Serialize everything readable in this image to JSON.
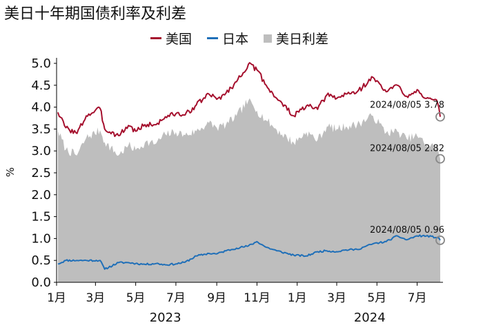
{
  "chart_data": {
    "type": "area",
    "title": "美日十年期国债利率及利差",
    "ylabel": "%",
    "ylim": [
      0.0,
      5.0
    ],
    "yticks": [
      "0.0",
      "0.5",
      "1.0",
      "1.5",
      "2.0",
      "2.5",
      "3.0",
      "3.5",
      "4.0",
      "4.5",
      "5.0"
    ],
    "xaxis": {
      "start": "2023-01-01",
      "end": "2024-08-05",
      "month_labels": [
        {
          "date": "2023-01-01",
          "label": "1月"
        },
        {
          "date": "2023-03-01",
          "label": "3月"
        },
        {
          "date": "2023-05-01",
          "label": "5月"
        },
        {
          "date": "2023-07-01",
          "label": "7月"
        },
        {
          "date": "2023-09-01",
          "label": "9月"
        },
        {
          "date": "2023-11-01",
          "label": "11月"
        },
        {
          "date": "2024-01-01",
          "label": "1月"
        },
        {
          "date": "2024-03-01",
          "label": "3月"
        },
        {
          "date": "2024-05-01",
          "label": "5月"
        },
        {
          "date": "2024-07-01",
          "label": "7月"
        }
      ],
      "year_labels": [
        {
          "date": "2023-06-15",
          "label": "2023"
        },
        {
          "date": "2024-04-20",
          "label": "2024"
        }
      ]
    },
    "legend": [
      {
        "name": "美国",
        "color": "#A50F2D",
        "style": "line"
      },
      {
        "name": "日本",
        "color": "#1F6FB8",
        "style": "line"
      },
      {
        "name": "美日利差",
        "color": "#BEBEBE",
        "style": "area"
      }
    ],
    "series": [
      {
        "name": "美国",
        "color": "#A50F2D",
        "x": [
          "2023-01-03",
          "2023-01-15",
          "2023-02-01",
          "2023-02-15",
          "2023-03-08",
          "2023-03-15",
          "2023-04-05",
          "2023-04-20",
          "2023-05-01",
          "2023-05-15",
          "2023-06-01",
          "2023-06-15",
          "2023-07-01",
          "2023-07-15",
          "2023-08-01",
          "2023-08-20",
          "2023-09-01",
          "2023-09-15",
          "2023-10-01",
          "2023-10-19",
          "2023-11-01",
          "2023-11-15",
          "2023-12-01",
          "2023-12-27",
          "2024-01-15",
          "2024-02-01",
          "2024-02-15",
          "2024-03-01",
          "2024-03-15",
          "2024-04-01",
          "2024-04-25",
          "2024-05-15",
          "2024-06-01",
          "2024-06-15",
          "2024-07-01",
          "2024-07-15",
          "2024-08-01",
          "2024-08-05"
        ],
        "values": [
          3.88,
          3.53,
          3.4,
          3.8,
          3.97,
          3.5,
          3.35,
          3.58,
          3.45,
          3.6,
          3.6,
          3.78,
          3.85,
          3.82,
          4.05,
          4.3,
          4.18,
          4.32,
          4.58,
          4.98,
          4.85,
          4.5,
          4.2,
          3.8,
          4.03,
          3.95,
          4.28,
          4.2,
          4.3,
          4.35,
          4.68,
          4.35,
          4.5,
          4.25,
          4.4,
          4.2,
          4.1,
          3.78
        ]
      },
      {
        "name": "日本",
        "color": "#1F6FB8",
        "x": [
          "2023-01-03",
          "2023-01-15",
          "2023-02-01",
          "2023-02-15",
          "2023-03-08",
          "2023-03-15",
          "2023-04-05",
          "2023-04-20",
          "2023-05-01",
          "2023-05-15",
          "2023-06-01",
          "2023-06-15",
          "2023-07-01",
          "2023-07-15",
          "2023-08-01",
          "2023-08-20",
          "2023-09-01",
          "2023-09-15",
          "2023-10-01",
          "2023-10-19",
          "2023-11-01",
          "2023-11-15",
          "2023-12-01",
          "2023-12-27",
          "2024-01-15",
          "2024-02-01",
          "2024-02-15",
          "2024-03-01",
          "2024-03-15",
          "2024-04-01",
          "2024-04-25",
          "2024-05-15",
          "2024-06-01",
          "2024-06-15",
          "2024-07-01",
          "2024-07-15",
          "2024-08-01",
          "2024-08-05"
        ],
        "values": [
          0.42,
          0.5,
          0.5,
          0.5,
          0.5,
          0.3,
          0.45,
          0.45,
          0.43,
          0.41,
          0.43,
          0.4,
          0.42,
          0.46,
          0.6,
          0.66,
          0.65,
          0.72,
          0.78,
          0.83,
          0.93,
          0.8,
          0.72,
          0.62,
          0.6,
          0.7,
          0.72,
          0.7,
          0.74,
          0.75,
          0.88,
          0.93,
          1.06,
          0.97,
          1.06,
          1.06,
          1.02,
          0.96
        ]
      },
      {
        "name": "美日利差",
        "color": "#BEBEBE",
        "x": [
          "2023-01-03",
          "2023-01-15",
          "2023-02-01",
          "2023-02-15",
          "2023-03-08",
          "2023-03-15",
          "2023-04-05",
          "2023-04-20",
          "2023-05-01",
          "2023-05-15",
          "2023-06-01",
          "2023-06-15",
          "2023-07-01",
          "2023-07-15",
          "2023-08-01",
          "2023-08-20",
          "2023-09-01",
          "2023-09-15",
          "2023-10-01",
          "2023-10-19",
          "2023-11-01",
          "2023-11-15",
          "2023-12-01",
          "2023-12-27",
          "2024-01-15",
          "2024-02-01",
          "2024-02-15",
          "2024-03-01",
          "2024-03-15",
          "2024-04-01",
          "2024-04-25",
          "2024-05-15",
          "2024-06-01",
          "2024-06-15",
          "2024-07-01",
          "2024-07-15",
          "2024-08-01",
          "2024-08-05"
        ],
        "values": [
          3.46,
          3.03,
          2.9,
          3.3,
          3.47,
          3.2,
          2.9,
          3.13,
          3.02,
          3.19,
          3.17,
          3.38,
          3.43,
          3.36,
          3.45,
          3.64,
          3.53,
          3.6,
          3.8,
          4.15,
          3.92,
          3.7,
          3.48,
          3.18,
          3.43,
          3.25,
          3.56,
          3.5,
          3.56,
          3.6,
          3.8,
          3.42,
          3.44,
          3.28,
          3.34,
          3.14,
          3.08,
          2.82
        ]
      }
    ],
    "annotations": [
      {
        "series": "美国",
        "x": "2024-08-05",
        "y": 3.78,
        "label": "2024/08/05 3.78"
      },
      {
        "series": "美日利差",
        "x": "2024-08-05",
        "y": 2.82,
        "label": "2024/08/05 2.82"
      },
      {
        "series": "日本",
        "x": "2024-08-05",
        "y": 0.96,
        "label": "2024/08/05 0.96"
      }
    ]
  }
}
